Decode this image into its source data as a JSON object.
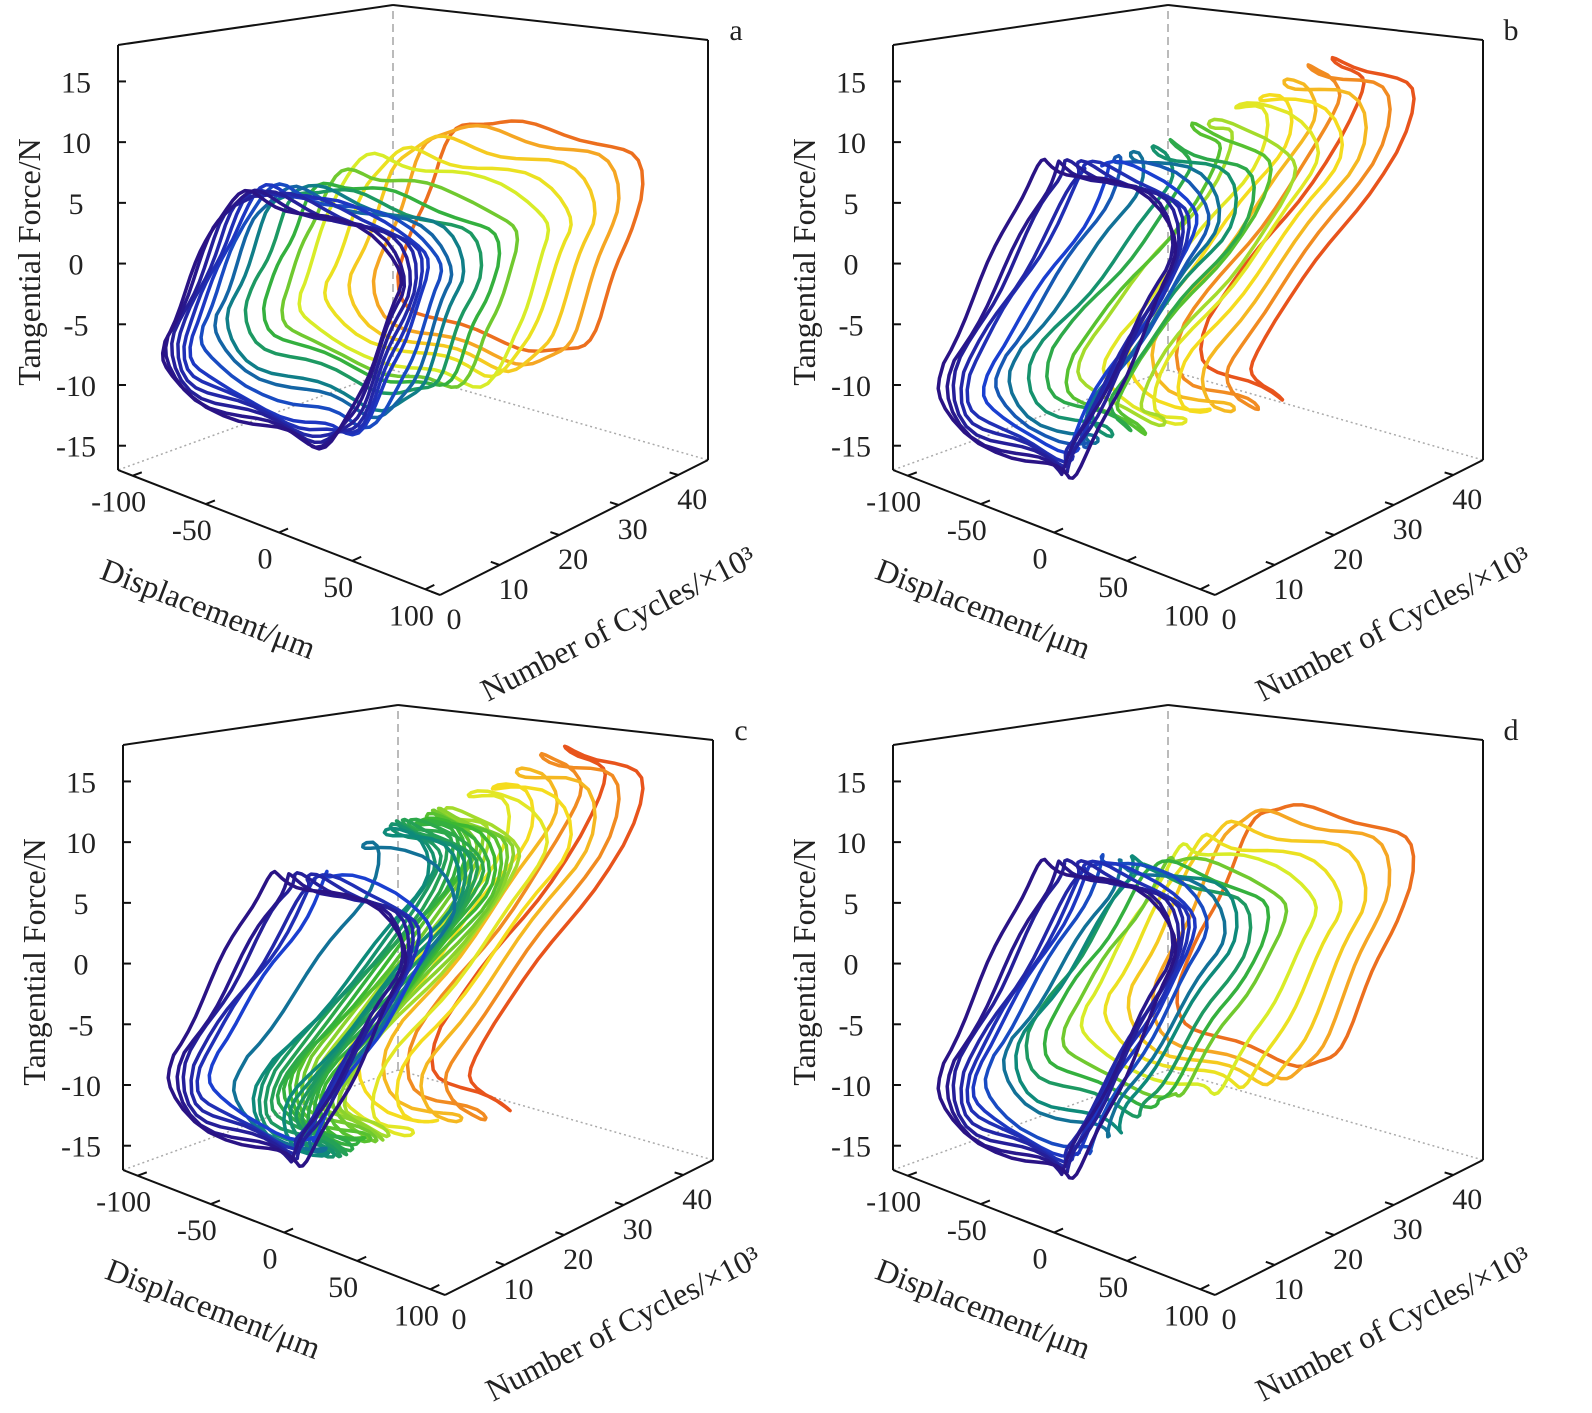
{
  "figure": {
    "colormap": [
      "#2b0f7e",
      "#1a3fd0",
      "#0e8a7a",
      "#3cb832",
      "#d8ec28",
      "#f5dc1e",
      "#f5a623",
      "#e8541c"
    ],
    "colormap_range_cycles": [
      0,
      42
    ]
  },
  "chart_data": [
    {
      "panel_label": "a",
      "type": "line3d",
      "xlabel": "Displacement/μm",
      "ylabel": "Number of Cycles/×10³",
      "zlabel": "Tangential Force/N",
      "xticks": [
        -100,
        -50,
        0,
        50,
        100
      ],
      "yticks": [
        0,
        10,
        20,
        30,
        40
      ],
      "zticks": [
        -15,
        -10,
        -5,
        0,
        5,
        10,
        15
      ],
      "xlim": [
        -110,
        110
      ],
      "ylim": [
        0,
        45
      ],
      "zlim": [
        -17,
        18
      ],
      "loop_fields": [
        "cycles_x1e3",
        "displacement_amplitude_um",
        "max_force_N",
        "stick_displacement_um"
      ],
      "loops": [
        [
          40,
          95,
          9.5,
          50
        ],
        [
          36,
          95,
          9.5,
          50
        ],
        [
          32,
          95,
          9,
          50
        ],
        [
          28,
          95,
          8.5,
          50
        ],
        [
          24,
          95,
          8.5,
          45
        ],
        [
          20,
          90,
          8,
          45
        ],
        [
          17,
          90,
          7.5,
          45
        ],
        [
          14,
          90,
          7.5,
          45
        ],
        [
          11,
          90,
          8,
          45
        ],
        [
          9,
          90,
          8,
          45
        ],
        [
          7,
          92,
          8.5,
          50
        ],
        [
          5,
          92,
          9,
          55
        ],
        [
          4,
          92,
          9,
          55
        ],
        [
          3,
          92,
          9,
          55
        ],
        [
          2,
          92,
          9,
          55
        ],
        [
          1,
          92,
          9,
          55
        ],
        [
          0.5,
          92,
          9,
          55
        ]
      ]
    },
    {
      "panel_label": "b",
      "type": "line3d",
      "xlabel": "Displacement/μm",
      "ylabel": "Number of Cycles/×10³",
      "zlabel": "Tangential Force/N",
      "xticks": [
        -100,
        -50,
        0,
        50,
        100
      ],
      "yticks": [
        0,
        10,
        20,
        30,
        40
      ],
      "zticks": [
        -15,
        -10,
        -5,
        0,
        5,
        10,
        15
      ],
      "xlim": [
        -110,
        110
      ],
      "ylim": [
        0,
        45
      ],
      "zlim": [
        -17,
        18
      ],
      "loop_fields": [
        "cycles_x1e3",
        "displacement_amplitude_um",
        "max_force_N",
        "stick_displacement_um"
      ],
      "loops": [
        [
          42,
          95,
          15,
          150
        ],
        [
          38,
          95,
          15,
          150
        ],
        [
          34,
          95,
          14.5,
          150
        ],
        [
          30,
          95,
          14,
          150
        ],
        [
          26,
          95,
          14,
          150
        ],
        [
          22,
          95,
          13,
          140
        ],
        [
          19,
          90,
          13,
          140
        ],
        [
          16,
          90,
          12,
          130
        ],
        [
          13,
          90,
          12,
          130
        ],
        [
          10,
          90,
          12,
          120
        ],
        [
          8,
          90,
          12,
          110
        ],
        [
          6,
          90,
          12,
          110
        ],
        [
          4,
          92,
          12,
          100
        ],
        [
          3,
          92,
          12,
          100
        ],
        [
          2,
          92,
          12,
          90
        ],
        [
          1,
          92,
          12,
          90
        ],
        [
          0.5,
          95,
          12,
          80
        ]
      ]
    },
    {
      "panel_label": "c",
      "type": "line3d",
      "xlabel": "Displacement/μm",
      "ylabel": "Number of Cycles/×10³",
      "zlabel": "Tangential Force/N",
      "xticks": [
        -100,
        -50,
        0,
        50,
        100
      ],
      "yticks": [
        0,
        10,
        20,
        30,
        40
      ],
      "zticks": [
        -15,
        -10,
        -5,
        0,
        5,
        10,
        15
      ],
      "xlim": [
        -110,
        110
      ],
      "ylim": [
        0,
        45
      ],
      "zlim": [
        -17,
        18
      ],
      "loop_fields": [
        "cycles_x1e3",
        "displacement_amplitude_um",
        "max_force_N",
        "stick_displacement_um"
      ],
      "loops": [
        [
          42,
          95,
          16,
          160
        ],
        [
          38,
          95,
          16,
          160
        ],
        [
          34,
          95,
          15.5,
          160
        ],
        [
          30,
          95,
          15,
          160
        ],
        [
          26,
          95,
          15,
          160
        ],
        [
          22,
          92,
          14,
          160
        ],
        [
          21,
          92,
          14,
          160
        ],
        [
          20,
          92,
          14,
          160
        ],
        [
          19,
          92,
          14,
          160
        ],
        [
          18,
          92,
          14,
          160
        ],
        [
          17,
          92,
          14,
          160
        ],
        [
          16,
          92,
          14,
          160
        ],
        [
          15,
          92,
          14,
          160
        ],
        [
          14,
          92,
          14,
          160
        ],
        [
          13,
          92,
          14,
          160
        ],
        [
          12,
          92,
          14,
          160
        ],
        [
          10,
          95,
          13,
          130
        ],
        [
          6,
          92,
          11,
          100
        ],
        [
          4,
          92,
          11,
          100
        ],
        [
          3,
          92,
          11,
          100
        ],
        [
          2,
          92,
          11,
          90
        ],
        [
          1,
          92,
          11,
          90
        ],
        [
          0.5,
          95,
          11,
          80
        ]
      ]
    },
    {
      "panel_label": "d",
      "type": "line3d",
      "xlabel": "Displacement/μm",
      "ylabel": "Number of Cycles/×10³",
      "zlabel": "Tangential Force/N",
      "xticks": [
        -100,
        -50,
        0,
        50,
        100
      ],
      "yticks": [
        0,
        10,
        20,
        30,
        40
      ],
      "zticks": [
        -15,
        -10,
        -5,
        0,
        5,
        10,
        15
      ],
      "xlim": [
        -110,
        110
      ],
      "ylim": [
        0,
        45
      ],
      "zlim": [
        -17,
        18
      ],
      "loop_fields": [
        "cycles_x1e3",
        "displacement_amplitude_um",
        "max_force_N",
        "stick_displacement_um"
      ],
      "loops": [
        [
          40,
          95,
          11,
          70
        ],
        [
          36,
          95,
          11,
          70
        ],
        [
          32,
          95,
          10.5,
          70
        ],
        [
          28,
          95,
          10,
          75
        ],
        [
          24,
          95,
          10,
          80
        ],
        [
          20,
          92,
          10,
          90
        ],
        [
          17,
          92,
          10,
          90
        ],
        [
          14,
          92,
          10,
          90
        ],
        [
          12,
          92,
          11,
          100
        ],
        [
          10,
          92,
          11,
          100
        ],
        [
          7,
          92,
          12,
          100
        ],
        [
          5,
          92,
          12,
          100
        ],
        [
          4,
          92,
          12,
          100
        ],
        [
          3,
          92,
          12,
          100
        ],
        [
          2,
          92,
          12,
          90
        ],
        [
          1,
          92,
          12,
          90
        ],
        [
          0.5,
          95,
          12,
          80
        ]
      ]
    }
  ]
}
